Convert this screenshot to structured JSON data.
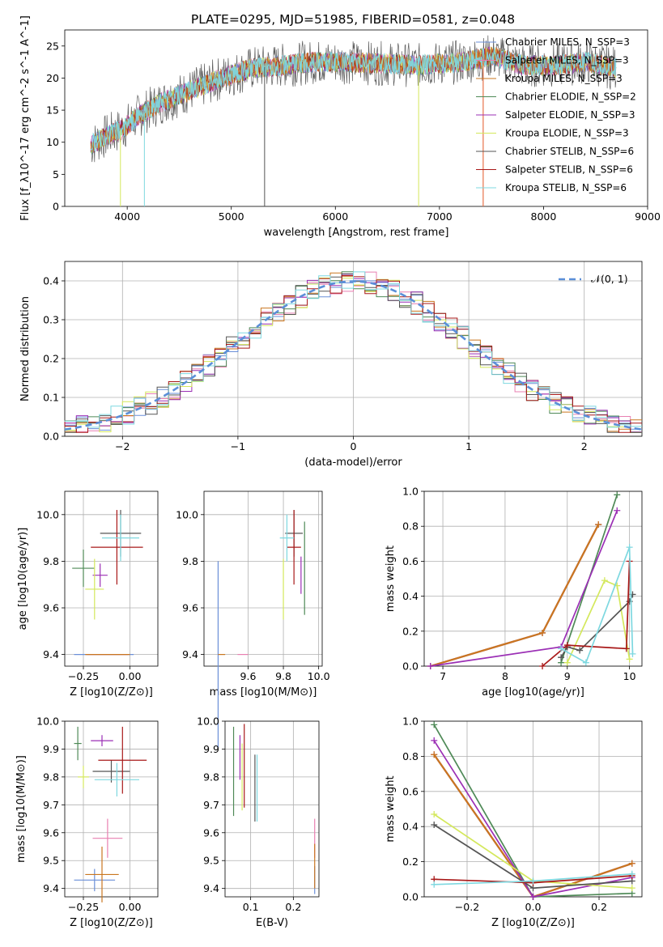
{
  "title": "PLATE=0295, MJD=51985, FIBERID=0581, z=0.048",
  "colors": {
    "chabrier_miles": "#6a8fd8",
    "salpeter_miles": "#e87fb1",
    "kroupa_miles": "#c9761f",
    "chabrier_elodie": "#4f8a57",
    "salpeter_elodie": "#9b2fb5",
    "kroupa_elodie": "#d4e85c",
    "chabrier_stelib": "#555555",
    "salpeter_stelib": "#a81818",
    "kroupa_stelib": "#7ed8e0",
    "gaussian": "#5b8fd8"
  },
  "chart_data": [
    {
      "id": "spectrum",
      "type": "line",
      "xlabel": "wavelength [Angstrom, rest frame]",
      "ylabel": "Flux [f_λ10^-17 erg cm^-2 s^-1 A^-1]",
      "xlim": [
        3400,
        9000
      ],
      "ylim": [
        0,
        27.5
      ],
      "xticks": [
        "4000",
        "5000",
        "6000",
        "7000",
        "8000",
        "9000"
      ],
      "yticks": [
        "0",
        "5",
        "10",
        "15",
        "20",
        "25"
      ],
      "legend": "upper-right",
      "series": [
        {
          "name": "Chabrier MILES, N_SSP=3",
          "key": "chabrier_miles"
        },
        {
          "name": "Salpeter MILES, N_SSP=3",
          "key": "salpeter_miles"
        },
        {
          "name": "Kroupa MILES, N_SSP=3",
          "key": "kroupa_miles"
        },
        {
          "name": "Chabrier ELODIE, N_SSP=2",
          "key": "chabrier_elodie"
        },
        {
          "name": "Salpeter ELODIE, N_SSP=3",
          "key": "salpeter_elodie"
        },
        {
          "name": "Kroupa ELODIE, N_SSP=3",
          "key": "kroupa_elodie"
        },
        {
          "name": "Chabrier STELIB, N_SSP=6",
          "key": "chabrier_stelib"
        },
        {
          "name": "Salpeter STELIB, N_SSP=6",
          "key": "salpeter_stelib"
        },
        {
          "name": "Kroupa STELIB, N_SSP=6",
          "key": "kroupa_stelib"
        }
      ],
      "continuum": [
        [
          3650,
          9.5
        ],
        [
          3800,
          11
        ],
        [
          3950,
          12
        ],
        [
          4100,
          14
        ],
        [
          4300,
          16
        ],
        [
          4600,
          18
        ],
        [
          4900,
          20
        ],
        [
          5200,
          21.5
        ],
        [
          5500,
          22
        ],
        [
          5800,
          22.5
        ],
        [
          6100,
          22.5
        ],
        [
          6400,
          22.3
        ],
        [
          6800,
          22
        ],
        [
          7200,
          22.5
        ],
        [
          7400,
          23
        ],
        [
          7500,
          23.5
        ],
        [
          7800,
          22
        ],
        [
          8100,
          22
        ],
        [
          8400,
          22.5
        ],
        [
          8700,
          21.5
        ]
      ]
    },
    {
      "id": "residuals",
      "type": "line",
      "xlabel": "(data-model)/error",
      "ylabel": "Normed distribution",
      "xlim": [
        -2.5,
        2.5
      ],
      "ylim": [
        0,
        0.45
      ],
      "xticks": [
        "−2",
        "−1",
        "0",
        "1",
        "2"
      ],
      "yticks": [
        "0.0",
        "0.1",
        "0.2",
        "0.3",
        "0.4"
      ],
      "legend_label": "𝒩(0, 1)"
    },
    {
      "id": "z_age",
      "type": "scatter",
      "xlabel": "Z [log10(Z/Z⊙)]",
      "ylabel": "age  [log10(age/yr)]",
      "xlim": [
        -0.35,
        0.15
      ],
      "ylim": [
        9.35,
        10.1
      ],
      "xticks": [
        "−0.25",
        "0.00"
      ],
      "yticks": [
        "9.4",
        "9.6",
        "9.8",
        "10.0"
      ],
      "points": [
        {
          "key": "chabrier_miles",
          "x": -0.14,
          "y": 9.4,
          "xe": 0.16,
          "ye": 0.0
        },
        {
          "key": "salpeter_miles",
          "x": -0.12,
          "y": 9.4,
          "xe": 0.11,
          "ye": 0.0
        },
        {
          "key": "kroupa_miles",
          "x": -0.12,
          "y": 9.4,
          "xe": 0.12,
          "ye": 0.0
        },
        {
          "key": "chabrier_elodie",
          "x": -0.25,
          "y": 9.77,
          "xe": 0.06,
          "ye": 0.08
        },
        {
          "key": "salpeter_elodie",
          "x": -0.16,
          "y": 9.74,
          "xe": 0.04,
          "ye": 0.05
        },
        {
          "key": "kroupa_elodie",
          "x": -0.19,
          "y": 9.68,
          "xe": 0.05,
          "ye": 0.13
        },
        {
          "key": "chabrier_stelib",
          "x": -0.05,
          "y": 9.92,
          "xe": 0.11,
          "ye": 0.1
        },
        {
          "key": "salpeter_stelib",
          "x": -0.07,
          "y": 9.86,
          "xe": 0.14,
          "ye": 0.16
        },
        {
          "key": "kroupa_stelib",
          "x": -0.05,
          "y": 9.9,
          "xe": 0.1,
          "ye": 0.1
        }
      ]
    },
    {
      "id": "mass_age",
      "type": "scatter",
      "xlabel": "mass [log10(M/M⊙)]",
      "ylabel": "",
      "xlim": [
        9.35,
        10.02
      ],
      "ylim": [
        9.35,
        10.1
      ],
      "xticks": [
        "9.6",
        "9.8",
        "10.0"
      ],
      "yticks": [
        "9.4",
        "9.6",
        "9.8",
        "10.0"
      ],
      "points": [
        {
          "key": "chabrier_miles",
          "x": 9.43,
          "y": 9.4,
          "xe": 0.0,
          "ye": 0.4
        },
        {
          "key": "salpeter_miles",
          "x": 9.57,
          "y": 9.4,
          "xe": 0.03,
          "ye": 0.0
        },
        {
          "key": "kroupa_miles",
          "x": 9.45,
          "y": 9.4,
          "xe": 0.02,
          "ye": 0.0
        },
        {
          "key": "chabrier_elodie",
          "x": 9.92,
          "y": 9.77,
          "xe": 0.0,
          "ye": 0.2
        },
        {
          "key": "salpeter_elodie",
          "x": 9.9,
          "y": 9.74,
          "xe": 0.0,
          "ye": 0.08
        },
        {
          "key": "kroupa_elodie",
          "x": 9.8,
          "y": 9.68,
          "xe": 0.0,
          "ye": 0.13
        },
        {
          "key": "chabrier_stelib",
          "x": 9.86,
          "y": 9.92,
          "xe": 0.05,
          "ye": 0.1
        },
        {
          "key": "salpeter_stelib",
          "x": 9.86,
          "y": 9.86,
          "xe": 0.04,
          "ye": 0.16
        },
        {
          "key": "kroupa_stelib",
          "x": 9.82,
          "y": 9.9,
          "xe": 0.04,
          "ye": 0.1
        }
      ]
    },
    {
      "id": "age_weight",
      "type": "line",
      "xlabel": "age  [log10(age/yr)]",
      "ylabel": "mass weight",
      "xlim": [
        6.7,
        10.2
      ],
      "ylim": [
        0,
        1.0
      ],
      "xticks": [
        "7",
        "8",
        "9",
        "10"
      ],
      "yticks": [
        "0.0",
        "0.2",
        "0.4",
        "0.6",
        "0.8",
        "1.0"
      ],
      "series": [
        {
          "key": "chabrier_miles",
          "x": [
            6.8,
            8.6,
            9.5
          ],
          "y": [
            0.0,
            0.19,
            0.81
          ]
        },
        {
          "key": "salpeter_miles",
          "x": [
            6.8,
            8.6,
            9.5
          ],
          "y": [
            0.0,
            0.19,
            0.81
          ]
        },
        {
          "key": "kroupa_miles",
          "x": [
            6.8,
            8.6,
            9.5
          ],
          "y": [
            0.0,
            0.19,
            0.81
          ]
        },
        {
          "key": "chabrier_elodie",
          "x": [
            8.9,
            9.8
          ],
          "y": [
            0.02,
            0.98
          ]
        },
        {
          "key": "salpeter_elodie",
          "x": [
            6.8,
            8.9,
            9.8
          ],
          "y": [
            0.0,
            0.11,
            0.89
          ]
        },
        {
          "key": "kroupa_elodie",
          "x": [
            9.0,
            9.6,
            9.8,
            10.0
          ],
          "y": [
            0.02,
            0.49,
            0.46,
            0.04
          ]
        },
        {
          "key": "chabrier_stelib",
          "x": [
            8.9,
            9.0,
            9.2,
            10.0,
            10.05
          ],
          "y": [
            0.05,
            0.11,
            0.09,
            0.37,
            0.41
          ]
        },
        {
          "key": "salpeter_stelib",
          "x": [
            8.6,
            9.0,
            9.95,
            10.0
          ],
          "y": [
            0.0,
            0.12,
            0.1,
            0.6
          ]
        },
        {
          "key": "kroupa_stelib",
          "x": [
            8.9,
            9.3,
            10.0,
            10.05
          ],
          "y": [
            0.1,
            0.02,
            0.68,
            0.07
          ]
        }
      ]
    },
    {
      "id": "z_mass",
      "type": "scatter",
      "xlabel": "Z [log10(Z/Z⊙)]",
      "ylabel": "mass [log10(M/M⊙)]",
      "xlim": [
        -0.35,
        0.15
      ],
      "ylim": [
        9.37,
        10.0
      ],
      "xticks": [
        "−0.25",
        "0.00"
      ],
      "yticks": [
        "9.4",
        "9.5",
        "9.6",
        "9.7",
        "9.8",
        "9.9",
        "10.0"
      ],
      "points": [
        {
          "key": "chabrier_miles",
          "x": -0.19,
          "y": 9.43,
          "xe": 0.11,
          "ye": 0.04
        },
        {
          "key": "salpeter_miles",
          "x": -0.12,
          "y": 9.58,
          "xe": 0.08,
          "ye": 0.07
        },
        {
          "key": "kroupa_miles",
          "x": -0.15,
          "y": 9.45,
          "xe": 0.09,
          "ye": 0.1
        },
        {
          "key": "chabrier_elodie",
          "x": -0.28,
          "y": 9.92,
          "xe": 0.02,
          "ye": 0.06
        },
        {
          "key": "salpeter_elodie",
          "x": -0.15,
          "y": 9.93,
          "xe": 0.06,
          "ye": 0.02
        },
        {
          "key": "kroupa_elodie",
          "x": -0.25,
          "y": 9.8,
          "xe": 0.03,
          "ye": 0.04
        },
        {
          "key": "chabrier_stelib",
          "x": -0.1,
          "y": 9.82,
          "xe": 0.1,
          "ye": 0.04
        },
        {
          "key": "salpeter_stelib",
          "x": -0.04,
          "y": 9.86,
          "xe": 0.13,
          "ye": 0.12
        },
        {
          "key": "kroupa_stelib",
          "x": -0.07,
          "y": 9.79,
          "xe": 0.12,
          "ye": 0.06
        }
      ]
    },
    {
      "id": "ebv_mass",
      "type": "scatter",
      "xlabel": "E(B-V)",
      "ylabel": "",
      "xlim": [
        0.04,
        0.26
      ],
      "ylim": [
        9.37,
        10.0
      ],
      "xticks": [
        "0.1",
        "0.2"
      ],
      "yticks": [
        "9.4",
        "9.5",
        "9.6",
        "9.7",
        "9.8",
        "9.9",
        "10.0"
      ],
      "points": [
        {
          "key": "chabrier_miles",
          "x": 0.25,
          "y": 9.43,
          "xe": 0,
          "ye": 0.05
        },
        {
          "key": "salpeter_miles",
          "x": 0.25,
          "y": 9.58,
          "xe": 0,
          "ye": 0.07
        },
        {
          "key": "kroupa_miles",
          "x": 0.25,
          "y": 9.48,
          "xe": 0,
          "ye": 0.08
        },
        {
          "key": "chabrier_elodie",
          "x": 0.06,
          "y": 9.82,
          "xe": 0,
          "ye": 0.16
        },
        {
          "key": "salpeter_elodie",
          "x": 0.075,
          "y": 9.87,
          "xe": 0,
          "ye": 0.08
        },
        {
          "key": "kroupa_elodie",
          "x": 0.08,
          "y": 9.8,
          "xe": 0,
          "ye": 0.12
        },
        {
          "key": "chabrier_stelib",
          "x": 0.11,
          "y": 9.76,
          "xe": 0,
          "ye": 0.12
        },
        {
          "key": "salpeter_stelib",
          "x": 0.085,
          "y": 9.84,
          "xe": 0,
          "ye": 0.15
        },
        {
          "key": "kroupa_stelib",
          "x": 0.115,
          "y": 9.76,
          "xe": 0,
          "ye": 0.12
        }
      ]
    },
    {
      "id": "z_weight",
      "type": "line",
      "xlabel": "Z [log10(Z/Z⊙)]",
      "ylabel": "mass weight",
      "xlim": [
        -0.33,
        0.33
      ],
      "ylim": [
        0,
        1.0
      ],
      "xticks": [
        "−0.2",
        "0.0",
        "0.2"
      ],
      "yticks": [
        "0.0",
        "0.2",
        "0.4",
        "0.6",
        "0.8",
        "1.0"
      ],
      "series": [
        {
          "key": "chabrier_miles",
          "x": [
            -0.3,
            0.0,
            0.3
          ],
          "y": [
            0.81,
            0.0,
            0.19
          ]
        },
        {
          "key": "salpeter_miles",
          "x": [
            -0.3,
            0.0,
            0.3
          ],
          "y": [
            0.81,
            0.0,
            0.19
          ]
        },
        {
          "key": "kroupa_miles",
          "x": [
            -0.3,
            0.0,
            0.3
          ],
          "y": [
            0.81,
            0.0,
            0.19
          ]
        },
        {
          "key": "chabrier_elodie",
          "x": [
            -0.3,
            0.0,
            0.3
          ],
          "y": [
            0.98,
            0.0,
            0.02
          ]
        },
        {
          "key": "salpeter_elodie",
          "x": [
            -0.3,
            0.0,
            0.3
          ],
          "y": [
            0.89,
            0.0,
            0.11
          ]
        },
        {
          "key": "kroupa_elodie",
          "x": [
            -0.3,
            0.0,
            0.3
          ],
          "y": [
            0.47,
            0.09,
            0.05
          ]
        },
        {
          "key": "chabrier_stelib",
          "x": [
            -0.3,
            0.0,
            0.3
          ],
          "y": [
            0.41,
            0.05,
            0.09
          ]
        },
        {
          "key": "salpeter_stelib",
          "x": [
            -0.3,
            0.0,
            0.3
          ],
          "y": [
            0.1,
            0.08,
            0.12
          ]
        },
        {
          "key": "kroupa_stelib",
          "x": [
            -0.3,
            0.0,
            0.3
          ],
          "y": [
            0.07,
            0.09,
            0.13
          ]
        }
      ]
    }
  ]
}
